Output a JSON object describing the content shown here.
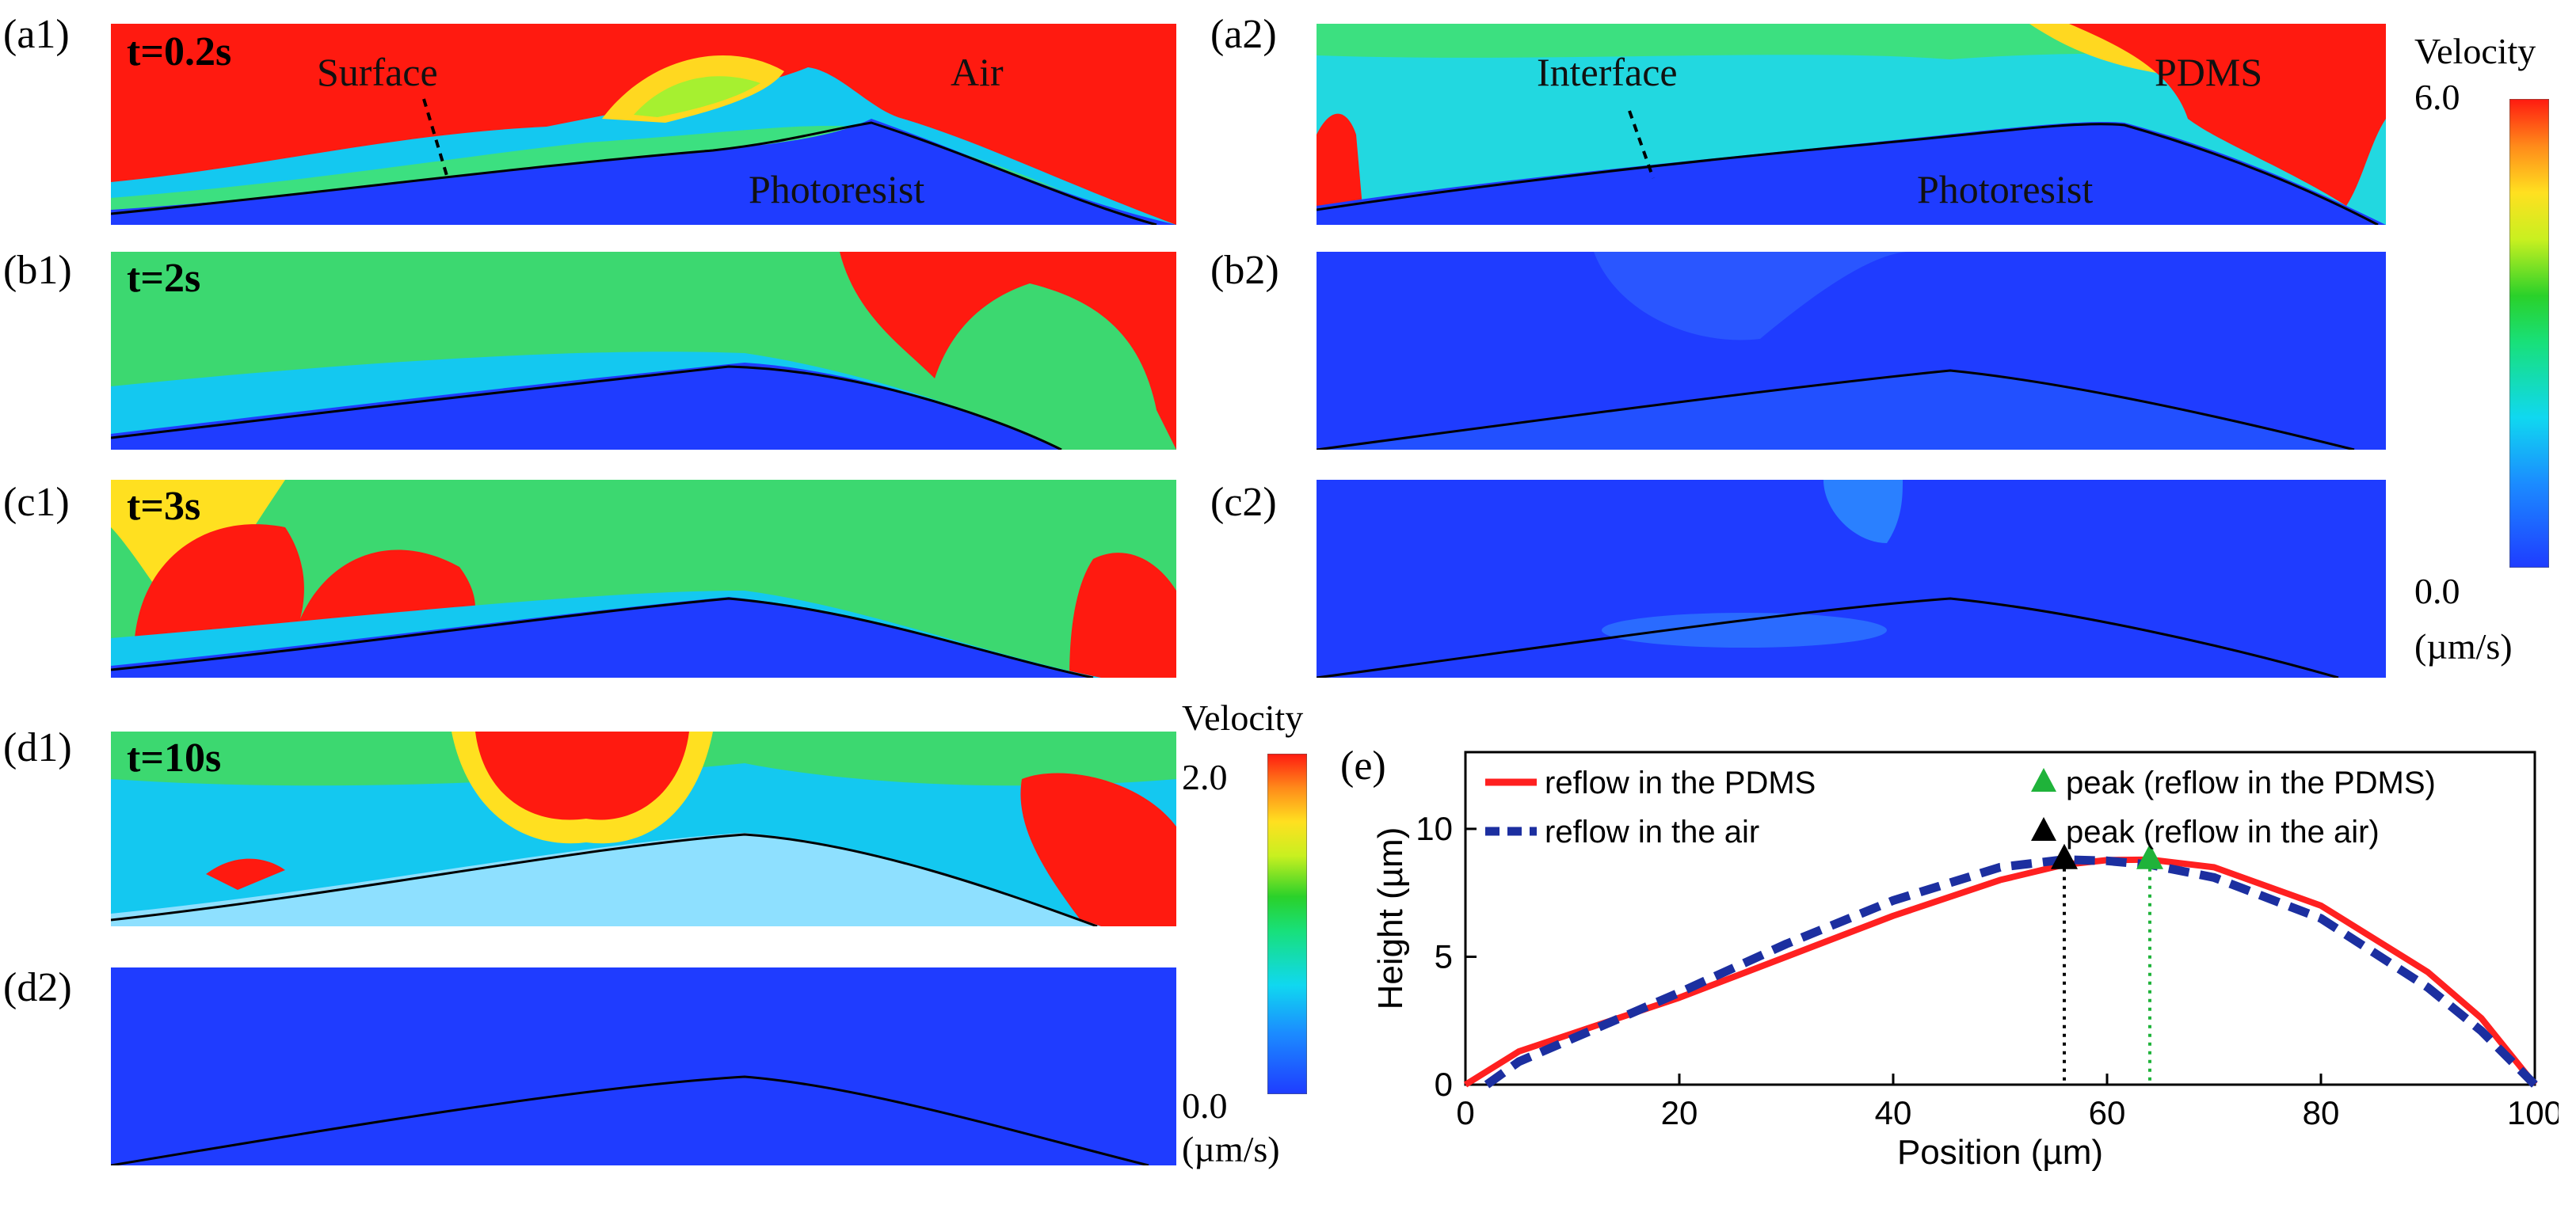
{
  "panels": {
    "a1": {
      "label": "(a1)",
      "time": "t=0.2s",
      "annotations": {
        "surface": "Surface",
        "air": "Air",
        "photoresist": "Photoresist"
      }
    },
    "a2": {
      "label": "(a2)",
      "annotations": {
        "interface": "Interface",
        "pdms": "PDMS",
        "photoresist": "Photoresist"
      }
    },
    "b1": {
      "label": "(b1)",
      "time": "t=2s"
    },
    "b2": {
      "label": "(b2)"
    },
    "c1": {
      "label": "(c1)",
      "time": "t=3s"
    },
    "c2": {
      "label": "(c2)"
    },
    "d1": {
      "label": "(d1)",
      "time": "t=10s"
    },
    "d2": {
      "label": "(d2)"
    },
    "e": {
      "label": "(e)"
    }
  },
  "colorbar_right": {
    "title": "Velocity",
    "max": "6.0",
    "min": "0.0",
    "unit": "(µm/s)"
  },
  "colorbar_left": {
    "title": "Velocity",
    "max": "2.0",
    "min": "0.0",
    "unit": "(µm/s)"
  },
  "colors": {
    "jet_low": "#1f3cff",
    "jet_high": "#ff1a10",
    "pdms_line": "#ff2020",
    "air_line": "#1c2fa0",
    "peak_pdms": "#1fb33a",
    "peak_air": "#000000"
  },
  "chart_data": {
    "type": "line",
    "xlabel": "Position (µm)",
    "ylabel": "Height (µm)",
    "xlim": [
      0,
      100
    ],
    "ylim": [
      0,
      13
    ],
    "xticks": [
      0,
      20,
      40,
      60,
      80,
      100
    ],
    "yticks": [
      0,
      5,
      10
    ],
    "series": [
      {
        "name": "reflow in the PDMS",
        "style": "solid",
        "color": "#ff2020",
        "x": [
          0,
          5,
          10,
          20,
          30,
          40,
          50,
          56,
          60,
          64,
          70,
          80,
          90,
          95,
          100
        ],
        "y": [
          0,
          1.3,
          2.0,
          3.4,
          5.0,
          6.6,
          8.0,
          8.6,
          8.78,
          8.8,
          8.5,
          7.0,
          4.4,
          2.6,
          0
        ]
      },
      {
        "name": "reflow in the air",
        "style": "dashed",
        "color": "#1c2fa0",
        "x": [
          2,
          5,
          10,
          20,
          30,
          40,
          50,
          56,
          60,
          64,
          70,
          80,
          90,
          95,
          100
        ],
        "y": [
          0,
          0.9,
          1.8,
          3.6,
          5.5,
          7.2,
          8.5,
          8.8,
          8.75,
          8.6,
          8.1,
          6.5,
          3.8,
          2.1,
          0
        ]
      }
    ],
    "peaks": [
      {
        "name": "peak (reflow in the PDMS)",
        "x": 64,
        "y": 8.8,
        "color": "#1fb33a"
      },
      {
        "name": "peak (reflow in the air)",
        "x": 56,
        "y": 8.8,
        "color": "#000000"
      }
    ]
  }
}
